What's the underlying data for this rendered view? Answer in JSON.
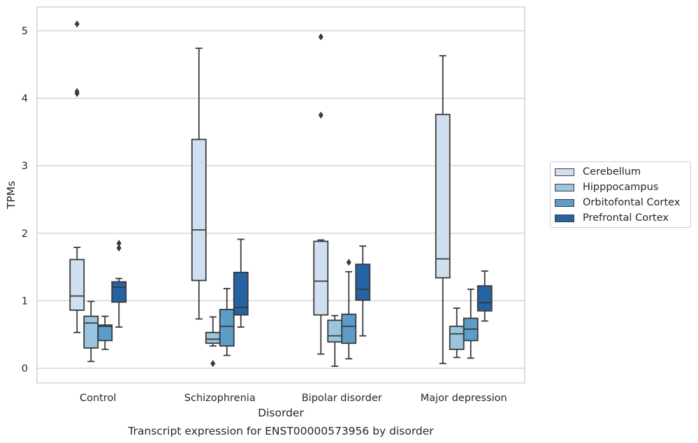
{
  "chart_data": {
    "type": "boxplot",
    "caption": "Transcript expression for ENST00000573956 by disorder",
    "xlabel": "Disorder",
    "ylabel": "TPMs",
    "ylim": [
      -0.2,
      5.35
    ],
    "yticks": [
      0,
      1,
      2,
      3,
      4,
      5
    ],
    "grid": true,
    "legend_position": "right",
    "categories": [
      "Control",
      "Schizophrenia",
      "Bipolar disorder",
      "Major depression"
    ],
    "series": [
      {
        "name": "Cerebellum",
        "color": "#d0e0f0",
        "boxes": [
          {
            "whislo": 0.53,
            "q1": 0.86,
            "med": 1.07,
            "q3": 1.61,
            "whishi": 1.79,
            "fliers": [
              4.07,
              4.1,
              5.1
            ]
          },
          {
            "whislo": 0.73,
            "q1": 1.3,
            "med": 2.05,
            "q3": 3.39,
            "whishi": 4.74,
            "fliers": []
          },
          {
            "whislo": 0.21,
            "q1": 0.79,
            "med": 1.29,
            "q3": 1.88,
            "whishi": 1.9,
            "fliers": [
              3.75,
              4.91
            ]
          },
          {
            "whislo": 0.07,
            "q1": 1.34,
            "med": 1.62,
            "q3": 3.76,
            "whishi": 4.63,
            "fliers": []
          }
        ]
      },
      {
        "name": "Hipppocampus",
        "color": "#9ac5de",
        "boxes": [
          {
            "whislo": 0.1,
            "q1": 0.3,
            "med": 0.67,
            "q3": 0.77,
            "whishi": 0.99,
            "fliers": []
          },
          {
            "whislo": 0.33,
            "q1": 0.37,
            "med": 0.43,
            "q3": 0.53,
            "whishi": 0.76,
            "fliers": [
              0.07
            ]
          },
          {
            "whislo": 0.03,
            "q1": 0.39,
            "med": 0.48,
            "q3": 0.71,
            "whishi": 0.78,
            "fliers": []
          },
          {
            "whislo": 0.16,
            "q1": 0.28,
            "med": 0.51,
            "q3": 0.62,
            "whishi": 0.89,
            "fliers": []
          }
        ]
      },
      {
        "name": "Orbitofontal Cortex",
        "color": "#5b9cc9",
        "boxes": [
          {
            "whislo": 0.28,
            "q1": 0.41,
            "med": 0.62,
            "q3": 0.64,
            "whishi": 0.77,
            "fliers": []
          },
          {
            "whislo": 0.19,
            "q1": 0.33,
            "med": 0.62,
            "q3": 0.87,
            "whishi": 1.18,
            "fliers": []
          },
          {
            "whislo": 0.14,
            "q1": 0.37,
            "med": 0.62,
            "q3": 0.8,
            "whishi": 1.43,
            "fliers": [
              1.57
            ]
          },
          {
            "whislo": 0.15,
            "q1": 0.41,
            "med": 0.58,
            "q3": 0.74,
            "whishi": 1.17,
            "fliers": []
          }
        ]
      },
      {
        "name": "Prefrontal Cortex",
        "color": "#2563a3",
        "boxes": [
          {
            "whislo": 0.61,
            "q1": 0.98,
            "med": 1.2,
            "q3": 1.28,
            "whishi": 1.33,
            "fliers": [
              1.78,
              1.85
            ]
          },
          {
            "whislo": 0.61,
            "q1": 0.79,
            "med": 0.9,
            "q3": 1.42,
            "whishi": 1.91,
            "fliers": []
          },
          {
            "whislo": 0.48,
            "q1": 1.01,
            "med": 1.17,
            "q3": 1.54,
            "whishi": 1.81,
            "fliers": []
          },
          {
            "whislo": 0.7,
            "q1": 0.85,
            "med": 0.97,
            "q3": 1.22,
            "whishi": 1.44,
            "fliers": []
          }
        ]
      }
    ]
  }
}
